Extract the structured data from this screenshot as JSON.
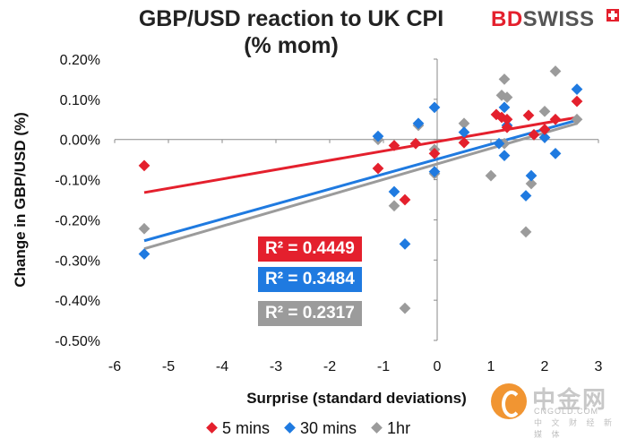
{
  "brand": {
    "part1": "BD",
    "part2": "SWISS"
  },
  "watermark": {
    "cn": "中金网",
    "en": "CNGOLD.COM",
    "sub": "中 文 财 经 新 媒 体"
  },
  "chart_data": {
    "type": "scatter",
    "title": "GBP/USD reaction to UK CPI (% mom)",
    "xlabel": "Surprise (standard deviations)",
    "ylabel": "Change in GBP/USD  (%)",
    "xlim": [
      -6,
      3
    ],
    "ylim": [
      -0.5,
      0.2
    ],
    "x_ticks": [
      "-6",
      "-5",
      "-4",
      "-3",
      "-2",
      "-1",
      "0",
      "1",
      "2",
      "3"
    ],
    "y_ticks": [
      "0.20%",
      "0.10%",
      "0.00%",
      "-0.10%",
      "-0.20%",
      "-0.30%",
      "-0.40%",
      "-0.50%"
    ],
    "grid": false,
    "legend_position": "bottom",
    "series": [
      {
        "name": "5 mins",
        "color": "#e4202d",
        "points": [
          [
            -5.45,
            -0.065
          ],
          [
            -1.1,
            -0.072
          ],
          [
            -0.8,
            -0.015
          ],
          [
            -0.6,
            -0.15
          ],
          [
            -0.4,
            -0.01
          ],
          [
            -0.05,
            -0.035
          ],
          [
            0.5,
            -0.008
          ],
          [
            1.1,
            0.062
          ],
          [
            1.2,
            0.055
          ],
          [
            1.3,
            0.05
          ],
          [
            1.3,
            0.03
          ],
          [
            1.7,
            0.06
          ],
          [
            1.8,
            0.012
          ],
          [
            2.0,
            0.025
          ],
          [
            2.2,
            0.05
          ],
          [
            2.6,
            0.095
          ]
        ],
        "trend": {
          "x": [
            -5.45,
            2.6
          ],
          "y": [
            -0.132,
            0.055
          ]
        },
        "r2_label": "R² = 0.4449"
      },
      {
        "name": "30 mins",
        "color": "#1f7ae0",
        "points": [
          [
            -5.45,
            -0.285
          ],
          [
            -1.1,
            0.008
          ],
          [
            -0.8,
            -0.13
          ],
          [
            -0.6,
            -0.26
          ],
          [
            -0.35,
            0.04
          ],
          [
            -0.05,
            0.08
          ],
          [
            -0.05,
            -0.08
          ],
          [
            0.5,
            0.018
          ],
          [
            1.15,
            -0.01
          ],
          [
            1.25,
            0.08
          ],
          [
            1.25,
            -0.04
          ],
          [
            1.3,
            0.035
          ],
          [
            1.65,
            -0.14
          ],
          [
            1.75,
            -0.09
          ],
          [
            2.0,
            0.005
          ],
          [
            2.2,
            -0.035
          ],
          [
            2.6,
            0.125
          ]
        ],
        "trend": {
          "x": [
            -5.45,
            2.6
          ],
          "y": [
            -0.252,
            0.048
          ]
        },
        "r2_label": "R² = 0.3484"
      },
      {
        "name": "1hr",
        "color": "#9b9b9b",
        "points": [
          [
            -5.45,
            -0.222
          ],
          [
            -1.1,
            0.0
          ],
          [
            -0.8,
            -0.165
          ],
          [
            -0.6,
            -0.42
          ],
          [
            -0.35,
            0.035
          ],
          [
            -0.05,
            -0.025
          ],
          [
            -0.05,
            -0.085
          ],
          [
            0.5,
            0.04
          ],
          [
            1.0,
            -0.09
          ],
          [
            1.2,
            0.11
          ],
          [
            1.25,
            0.15
          ],
          [
            1.3,
            0.105
          ],
          [
            1.25,
            -0.01
          ],
          [
            1.65,
            -0.23
          ],
          [
            1.75,
            -0.11
          ],
          [
            1.8,
            0.012
          ],
          [
            2.0,
            0.07
          ],
          [
            2.2,
            0.17
          ],
          [
            2.6,
            0.05
          ]
        ],
        "trend": {
          "x": [
            -5.45,
            2.6
          ],
          "y": [
            -0.272,
            0.04
          ]
        },
        "r2_label": "R² = 0.2317"
      }
    ]
  }
}
